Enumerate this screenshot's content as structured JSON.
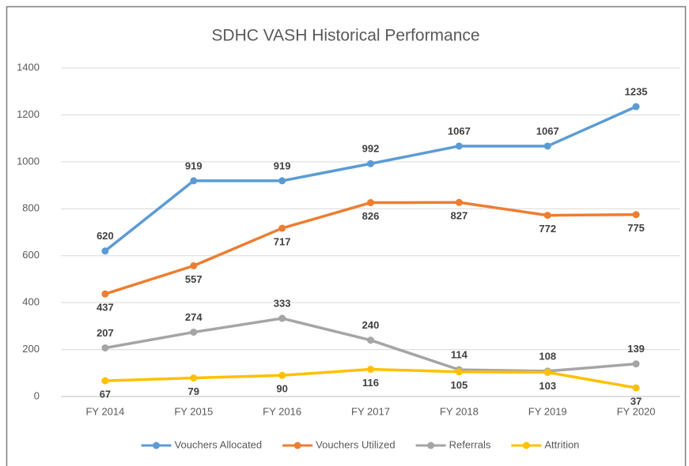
{
  "chart_data": {
    "type": "line",
    "title": "SDHC VASH Historical Performance",
    "categories": [
      "FY 2014",
      "FY 2015",
      "FY 2016",
      "FY 2017",
      "FY 2018",
      "FY 2019",
      "FY 2020"
    ],
    "series": [
      {
        "name": "Vouchers Allocated",
        "color": "#5b9bd5",
        "values": [
          620,
          919,
          919,
          992,
          1067,
          1067,
          1235
        ]
      },
      {
        "name": "Vouchers Utilized",
        "color": "#ed7d31",
        "values": [
          437,
          557,
          717,
          826,
          827,
          772,
          775
        ]
      },
      {
        "name": "Referrals",
        "color": "#a5a5a5",
        "values": [
          207,
          274,
          333,
          240,
          114,
          108,
          139
        ]
      },
      {
        "name": "Attrition",
        "color": "#ffc000",
        "values": [
          67,
          79,
          90,
          116,
          105,
          103,
          37
        ]
      }
    ],
    "ylim": [
      0,
      1400
    ],
    "yticks": [
      0,
      200,
      400,
      600,
      800,
      1000,
      1200,
      1400
    ],
    "grid": true,
    "legend": "bottom"
  }
}
